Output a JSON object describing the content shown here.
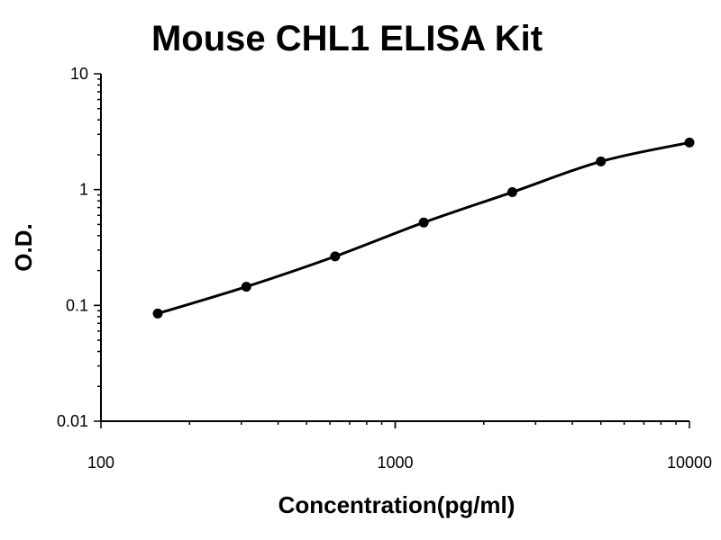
{
  "chart_data": {
    "type": "line",
    "title": "Mouse CHL1 ELISA Kit",
    "xlabel": "Concentration(pg/ml)",
    "ylabel": "O.D.",
    "x_scale": "log",
    "y_scale": "log",
    "xlim": [
      100,
      10000
    ],
    "ylim": [
      0.01,
      10
    ],
    "x_ticks": [
      "100",
      "1000",
      "10000"
    ],
    "y_ticks": [
      "0.01",
      "0.1",
      "1",
      "10"
    ],
    "grid": false,
    "legend": "none",
    "series": [
      {
        "x": [
          156,
          312,
          625,
          1250,
          2500,
          5000,
          10000
        ],
        "y": [
          0.085,
          0.145,
          0.265,
          0.52,
          0.95,
          1.75,
          2.55
        ]
      }
    ],
    "colors": {
      "line": "#000000",
      "marker": "#000000",
      "axis": "#000000"
    }
  }
}
